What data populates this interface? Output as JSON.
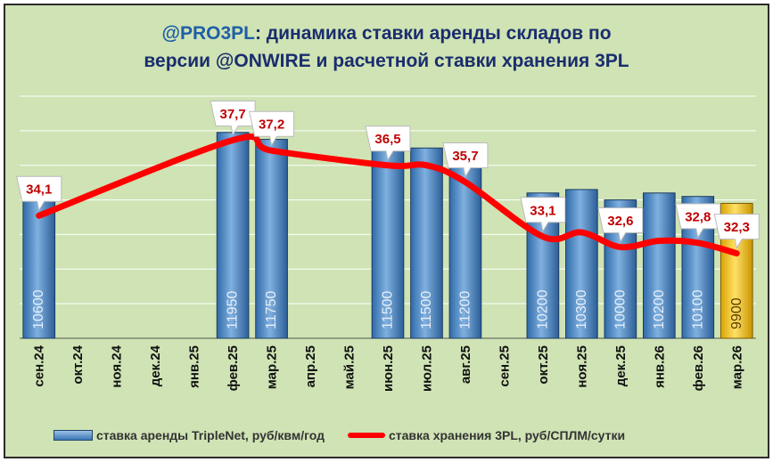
{
  "title": {
    "brand": "@PRO3PL",
    "rest_line1": ": динамика ставки аренды складов по",
    "line2": "версии @ONWIRE и расчетной ставки хранения 3PL"
  },
  "legend": {
    "bar_label": "ставка аренды TripleNet, руб/квм/год",
    "line_label": "ставка хранения 3PL, руб/СПЛМ/сутки"
  },
  "colors": {
    "bar": "#4a86c5",
    "bar_highlight": "#f0c020",
    "line": "#ff0000",
    "label_text": "#c00000",
    "background": "#cfe3b4"
  },
  "chart_data": {
    "type": "bar",
    "categories": [
      "сен.24",
      "окт.24",
      "ноя.24",
      "дек.24",
      "янв.25",
      "фев.25",
      "мар.25",
      "апр.25",
      "май.25",
      "июн.25",
      "июл.25",
      "авг.25",
      "сен.25",
      "окт.25",
      "ноя.25",
      "дек.25",
      "янв.26",
      "фев.26",
      "мар.26"
    ],
    "series": [
      {
        "name": "ставка аренды TripleNet, руб/квм/год",
        "type": "bar",
        "values": [
          10600,
          null,
          null,
          null,
          null,
          11950,
          11750,
          null,
          null,
          11500,
          11500,
          11200,
          null,
          10200,
          10300,
          10000,
          10200,
          10100,
          9900
        ],
        "labels": [
          "10600",
          "",
          "",
          "",
          "",
          "11950",
          "11750",
          "",
          "",
          "11500",
          "11500",
          "11200",
          "",
          "10200",
          "10300",
          "10000",
          "10200",
          "10100",
          "9900"
        ],
        "highlight_index": 18
      },
      {
        "name": "ставка хранения 3PL, руб/СПЛМ/сутки",
        "type": "line",
        "values": [
          34.1,
          null,
          null,
          null,
          null,
          37.7,
          37.2,
          null,
          null,
          36.5,
          36.5,
          35.7,
          null,
          33.1,
          33.3,
          32.6,
          32.9,
          32.8,
          32.3
        ],
        "labels": [
          "34,1",
          "",
          "",
          "",
          "",
          "37,7",
          "37,2",
          "",
          "",
          "36,5",
          "",
          "35,7",
          "",
          "33,1",
          "",
          "32,6",
          "",
          "32,8",
          "32,3"
        ]
      }
    ],
    "grid": true
  }
}
